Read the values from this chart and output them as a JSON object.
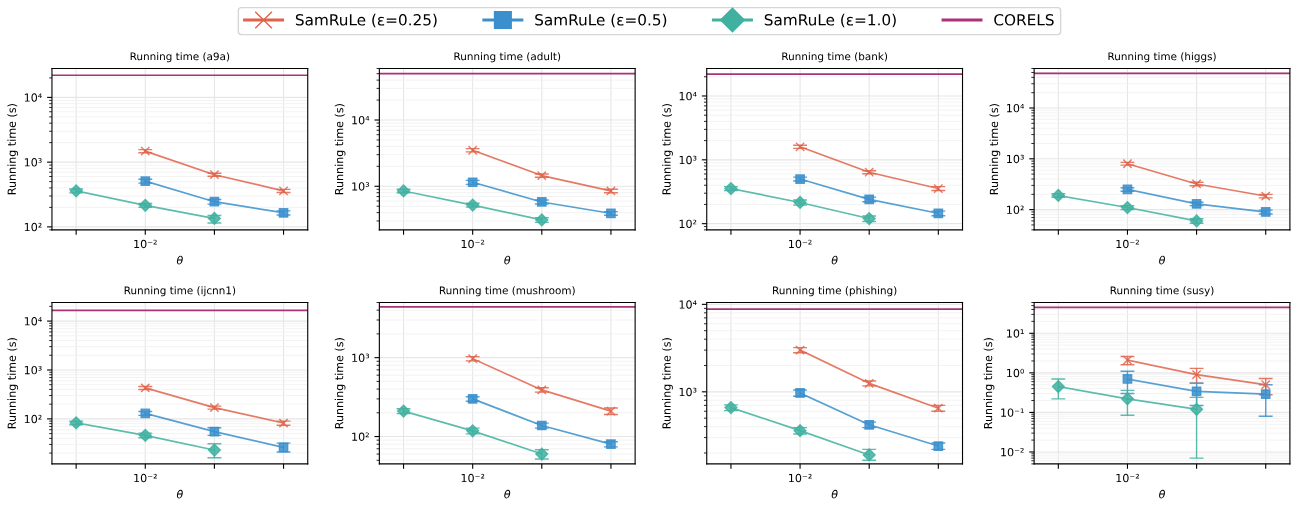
{
  "chart_data": [
    {
      "type": "line",
      "title": "Running time (a9a)",
      "xlabel": "θ",
      "ylabel": "Running time (s)",
      "log": "y",
      "grid": true,
      "legend": "top",
      "categories": [
        null,
        "10⁻²",
        null,
        null
      ],
      "ylim": [
        90,
        28000
      ],
      "yticks": [
        {
          "value": 100,
          "label": "10²"
        },
        {
          "value": 1000,
          "label": "10³"
        },
        {
          "value": 10000,
          "label": "10⁴"
        }
      ],
      "series": [
        {
          "name": "SamRuLe (ε=0.25)",
          "color": "#e0634a",
          "marker": "cross",
          "values": [
            null,
            1480,
            640,
            360
          ],
          "errors": [
            null,
            80,
            35,
            20
          ]
        },
        {
          "name": "SamRuLe (ε=0.5)",
          "color": "#3a8fcc",
          "marker": "square",
          "values": [
            null,
            510,
            245,
            165
          ],
          "errors": [
            null,
            35,
            20,
            12
          ]
        },
        {
          "name": "SamRuLe (ε=1.0)",
          "color": "#40b0a0",
          "marker": "diamond",
          "values": [
            360,
            215,
            135,
            null
          ],
          "errors": [
            25,
            15,
            [
              115,
              150
            ],
            null
          ]
        }
      ],
      "ref_lines": [
        {
          "axis": "y",
          "value": 22000,
          "label": "CORELS",
          "color": "#aa3377"
        }
      ]
    },
    {
      "type": "line",
      "title": "Running time (adult)",
      "xlabel": "θ",
      "ylabel": "Running time (s)",
      "log": "y",
      "grid": true,
      "categories": [
        null,
        "10⁻²",
        null,
        null
      ],
      "ylim": [
        220,
        60000
      ],
      "yticks": [
        {
          "value": 1000,
          "label": "10³"
        },
        {
          "value": 10000,
          "label": "10⁴"
        }
      ],
      "series": [
        {
          "color": "#e0634a",
          "marker": "cross",
          "values": [
            null,
            3500,
            1450,
            850
          ],
          "errors": [
            null,
            200,
            80,
            50
          ]
        },
        {
          "color": "#3a8fcc",
          "marker": "square",
          "values": [
            null,
            1150,
            580,
            390
          ],
          "errors": [
            null,
            80,
            40,
            25
          ]
        },
        {
          "color": "#40b0a0",
          "marker": "diamond",
          "values": [
            850,
            520,
            310,
            null
          ],
          "errors": [
            50,
            35,
            25,
            null
          ]
        }
      ],
      "ref_lines": [
        {
          "axis": "y",
          "value": 50000,
          "color": "#aa3377"
        }
      ]
    },
    {
      "type": "line",
      "title": "Running time (bank)",
      "xlabel": "θ",
      "ylabel": "Running time (s)",
      "log": "y",
      "grid": true,
      "categories": [
        null,
        "10⁻²",
        null,
        null
      ],
      "ylim": [
        80,
        27000
      ],
      "yticks": [
        {
          "value": 100,
          "label": "10²"
        },
        {
          "value": 1000,
          "label": "10³"
        },
        {
          "value": 10000,
          "label": "10⁴"
        }
      ],
      "series": [
        {
          "color": "#e0634a",
          "marker": "cross",
          "values": [
            null,
            1600,
            640,
            355
          ],
          "errors": [
            null,
            90,
            35,
            25
          ]
        },
        {
          "color": "#3a8fcc",
          "marker": "square",
          "values": [
            null,
            500,
            240,
            145
          ],
          "errors": [
            null,
            35,
            20,
            12
          ]
        },
        {
          "color": "#40b0a0",
          "marker": "diamond",
          "values": [
            355,
            215,
            120,
            null
          ],
          "errors": [
            25,
            20,
            12,
            null
          ]
        }
      ],
      "ref_lines": [
        {
          "axis": "y",
          "value": 22000,
          "color": "#aa3377"
        }
      ]
    },
    {
      "type": "line",
      "title": "Running time (higgs)",
      "xlabel": "θ",
      "ylabel": "Running time (s)",
      "log": "y",
      "grid": true,
      "categories": [
        null,
        "10⁻²",
        null,
        null
      ],
      "ylim": [
        40,
        60000
      ],
      "yticks": [
        {
          "value": 100,
          "label": "10²"
        },
        {
          "value": 1000,
          "label": "10³"
        },
        {
          "value": 10000,
          "label": "10⁴"
        }
      ],
      "series": [
        {
          "color": "#e0634a",
          "marker": "cross",
          "values": [
            null,
            800,
            320,
            185
          ],
          "errors": [
            null,
            50,
            25,
            15
          ]
        },
        {
          "color": "#3a8fcc",
          "marker": "square",
          "values": [
            null,
            250,
            130,
            90
          ],
          "errors": [
            null,
            20,
            10,
            8
          ]
        },
        {
          "color": "#40b0a0",
          "marker": "diamond",
          "values": [
            190,
            110,
            60,
            null
          ],
          "errors": [
            15,
            10,
            6,
            null
          ]
        }
      ],
      "ref_lines": [
        {
          "axis": "y",
          "value": 48000,
          "color": "#aa3377"
        }
      ]
    },
    {
      "type": "line",
      "title": "Running time (ijcnn1)",
      "xlabel": "θ",
      "ylabel": "Running time (s)",
      "log": "y",
      "grid": true,
      "categories": [
        null,
        "10⁻²",
        null,
        null
      ],
      "ylim": [
        12,
        24000
      ],
      "yticks": [
        {
          "value": 100,
          "label": "10²"
        },
        {
          "value": 1000,
          "label": "10³"
        },
        {
          "value": 10000,
          "label": "10⁴"
        }
      ],
      "series": [
        {
          "color": "#e0634a",
          "marker": "cross",
          "values": [
            null,
            430,
            170,
            82
          ],
          "errors": [
            null,
            30,
            12,
            8
          ]
        },
        {
          "color": "#3a8fcc",
          "marker": "square",
          "values": [
            null,
            130,
            55,
            26
          ],
          "errors": [
            null,
            12,
            [
              46,
              66
            ],
            [
              21,
              32
            ]
          ]
        },
        {
          "color": "#40b0a0",
          "marker": "diamond",
          "values": [
            83,
            46,
            23,
            null
          ],
          "errors": [
            7,
            5,
            [
              16,
              31
            ],
            null
          ]
        }
      ],
      "ref_lines": [
        {
          "axis": "y",
          "value": 16500,
          "color": "#aa3377"
        }
      ]
    },
    {
      "type": "line",
      "title": "Running time (mushroom)",
      "xlabel": "θ",
      "ylabel": "Running time (s)",
      "log": "y",
      "grid": true,
      "categories": [
        null,
        "10⁻²",
        null,
        null
      ],
      "ylim": [
        45,
        5000
      ],
      "yticks": [
        {
          "value": 100,
          "label": "10²"
        },
        {
          "value": 1000,
          "label": "10³"
        }
      ],
      "series": [
        {
          "color": "#e0634a",
          "marker": "cross",
          "values": [
            null,
            970,
            390,
            210
          ],
          "errors": [
            null,
            60,
            25,
            20
          ]
        },
        {
          "color": "#3a8fcc",
          "marker": "square",
          "values": [
            null,
            300,
            138,
            80
          ],
          "errors": [
            null,
            20,
            10,
            6
          ]
        },
        {
          "color": "#40b0a0",
          "marker": "diamond",
          "values": [
            210,
            118,
            60,
            null
          ],
          "errors": [
            15,
            10,
            8,
            null
          ]
        }
      ],
      "ref_lines": [
        {
          "axis": "y",
          "value": 4400,
          "color": "#aa3377"
        }
      ]
    },
    {
      "type": "line",
      "title": "Running time (phishing)",
      "xlabel": "θ",
      "ylabel": "Running time (s)",
      "log": "y",
      "grid": true,
      "categories": [
        null,
        "10⁻²",
        null,
        null
      ],
      "ylim": [
        150,
        10500
      ],
      "yticks": [
        {
          "value": 1000,
          "label": "10³"
        },
        {
          "value": 10000,
          "label": "10⁴"
        }
      ],
      "series": [
        {
          "color": "#e0634a",
          "marker": "cross",
          "values": [
            null,
            3000,
            1250,
            650
          ],
          "errors": [
            null,
            200,
            80,
            50
          ]
        },
        {
          "color": "#3a8fcc",
          "marker": "square",
          "values": [
            null,
            970,
            420,
            240
          ],
          "errors": [
            null,
            80,
            30,
            20
          ]
        },
        {
          "color": "#40b0a0",
          "marker": "diamond",
          "values": [
            660,
            360,
            190,
            null
          ],
          "errors": [
            50,
            30,
            [
              165,
              220
            ],
            null
          ]
        }
      ],
      "ref_lines": [
        {
          "axis": "y",
          "value": 8800,
          "color": "#aa3377"
        }
      ]
    },
    {
      "type": "line",
      "title": "Running time (susy)",
      "xlabel": "θ",
      "ylabel": "Running time (s)",
      "log": "y",
      "grid": true,
      "categories": [
        null,
        "10⁻²",
        null,
        null
      ],
      "ylim": [
        0.005,
        60
      ],
      "yticks": [
        {
          "value": 0.01,
          "label": "10⁻²"
        },
        {
          "value": 0.1,
          "label": "10⁻¹"
        },
        {
          "value": 1,
          "label": "10⁰"
        },
        {
          "value": 10,
          "label": "10¹"
        }
      ],
      "series": [
        {
          "color": "#e0634a",
          "marker": "cross",
          "values": [
            null,
            2.1,
            0.9,
            0.5
          ],
          "errors": [
            null,
            0.5,
            [
              0.55,
              1.3
            ],
            0.22
          ]
        },
        {
          "color": "#3a8fcc",
          "marker": "square",
          "values": [
            null,
            0.7,
            0.34,
            0.29
          ],
          "errors": [
            null,
            0.4,
            [
              0.15,
              0.55
            ],
            0.21
          ]
        },
        {
          "color": "#40b0a0",
          "marker": "diamond",
          "values": [
            0.45,
            0.22,
            0.12,
            null
          ],
          "errors": [
            [
              0.22,
              0.7
            ],
            [
              0.085,
              0.36
            ],
            [
              0.007,
              0.24
            ],
            null
          ]
        }
      ],
      "ref_lines": [
        {
          "axis": "y",
          "value": 45,
          "color": "#aa3377"
        }
      ]
    }
  ]
}
